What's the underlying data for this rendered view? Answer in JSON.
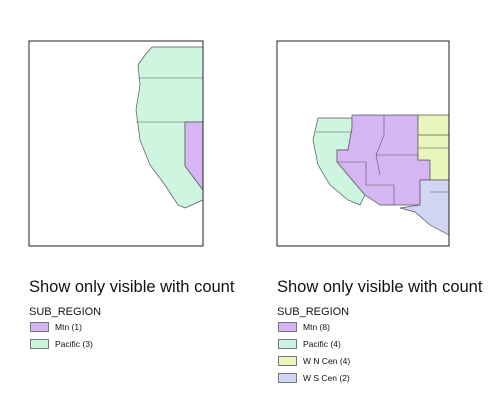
{
  "panels": [
    {
      "title": "Show only visible with count",
      "layer": "SUB_REGION",
      "items": [
        {
          "label": "Mtn (1)",
          "color": "#d5b6f3"
        },
        {
          "label": "Pacific (3)",
          "color": "#cef5df"
        }
      ]
    },
    {
      "title": "Show only visible with count",
      "layer": "SUB_REGION",
      "items": [
        {
          "label": "Mtn (8)",
          "color": "#d5b6f3"
        },
        {
          "label": "Pacific (4)",
          "color": "#cef5df"
        },
        {
          "label": "W N Cen (4)",
          "color": "#e9f6bb"
        },
        {
          "label": "W S Cen (2)",
          "color": "#d3d5f5"
        }
      ]
    }
  ]
}
